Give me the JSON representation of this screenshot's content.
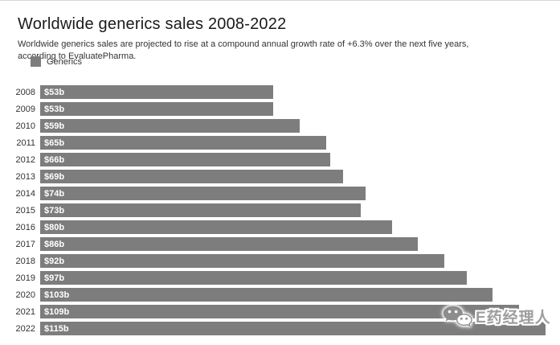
{
  "header": {
    "title": "Worldwide generics sales 2008-2022",
    "subtitle": "Worldwide generics sales are projected to rise at a compound annual growth rate of +6.3% over the next five years, according to EvaluatePharma."
  },
  "legend": {
    "label": "Generics",
    "swatch_color": "#7d7d7d"
  },
  "chart_data": {
    "type": "bar",
    "orientation": "horizontal",
    "title": "Worldwide generics sales 2008-2022",
    "subtitle": "Worldwide generics sales are projected to rise at a compound annual growth rate of +6.3% over the next five years, according to EvaluatePharma.",
    "series_name": "Generics",
    "categories": [
      "2008",
      "2009",
      "2010",
      "2011",
      "2012",
      "2013",
      "2014",
      "2015",
      "2016",
      "2017",
      "2018",
      "2019",
      "2020",
      "2021",
      "2022"
    ],
    "values": [
      53,
      53,
      59,
      65,
      66,
      69,
      74,
      73,
      80,
      86,
      92,
      97,
      103,
      109,
      115
    ],
    "labels": [
      "$53b",
      "$53b",
      "$59b",
      "$65b",
      "$66b",
      "$69b",
      "$74b",
      "$73b",
      "$80b",
      "$86b",
      "$92b",
      "$97b",
      "$103b",
      "$109b",
      "$115b"
    ],
    "unit": "billion USD",
    "bar_color": "#7d7d7d",
    "value_label_color": "#ffffff",
    "xlim": [
      0,
      117
    ],
    "grid": false,
    "legend_position": "top-left"
  },
  "watermark": {
    "icon": "wechat-icon",
    "text": "E药经理人",
    "color": "#9d9d9d"
  }
}
